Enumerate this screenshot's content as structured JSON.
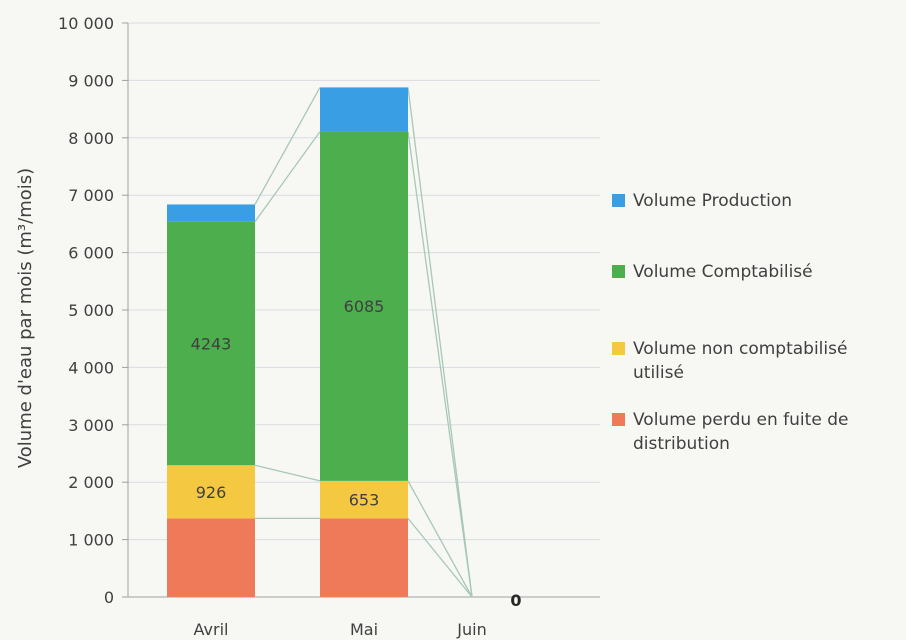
{
  "chart_data": {
    "type": "bar",
    "stacked": true,
    "categories": [
      "Avril",
      "Mai",
      "Juin"
    ],
    "ylabel": "Volume d'eau par mois (m³/mois)",
    "ylim": [
      0,
      10000
    ],
    "yticks": [
      {
        "value": 0,
        "label": "0"
      },
      {
        "value": 1000,
        "label": "1 000"
      },
      {
        "value": 2000,
        "label": "2 000"
      },
      {
        "value": 3000,
        "label": "3 000"
      },
      {
        "value": 4000,
        "label": "4 000"
      },
      {
        "value": 5000,
        "label": "5 000"
      },
      {
        "value": 6000,
        "label": "6 000"
      },
      {
        "value": 7000,
        "label": "7 000"
      },
      {
        "value": 8000,
        "label": "8 000"
      },
      {
        "value": 9000,
        "label": "9 000"
      },
      {
        "value": 10000,
        "label": "10 000"
      }
    ],
    "grid": true,
    "legend_position": "right",
    "series": [
      {
        "name": "Volume perdu en fuite de distribution",
        "color": "#ee7a5a",
        "values": [
          1370,
          1370,
          0
        ],
        "labels": [
          "",
          "",
          ""
        ]
      },
      {
        "name": "Volume non comptabilisé utilisé",
        "color": "#f5c842",
        "values": [
          926,
          653,
          0
        ],
        "labels": [
          "926",
          "653",
          ""
        ]
      },
      {
        "name": "Volume Comptabilisé",
        "color": "#4cae4c",
        "values": [
          4243,
          6085,
          0
        ],
        "labels": [
          "4243",
          "6085",
          ""
        ]
      },
      {
        "name": "Volume Production",
        "color": "#3a9ee4",
        "values": [
          300,
          770,
          0
        ],
        "labels": [
          "",
          "",
          ""
        ]
      }
    ],
    "annotations": [
      {
        "category": "Juin",
        "text": "0"
      }
    ]
  }
}
